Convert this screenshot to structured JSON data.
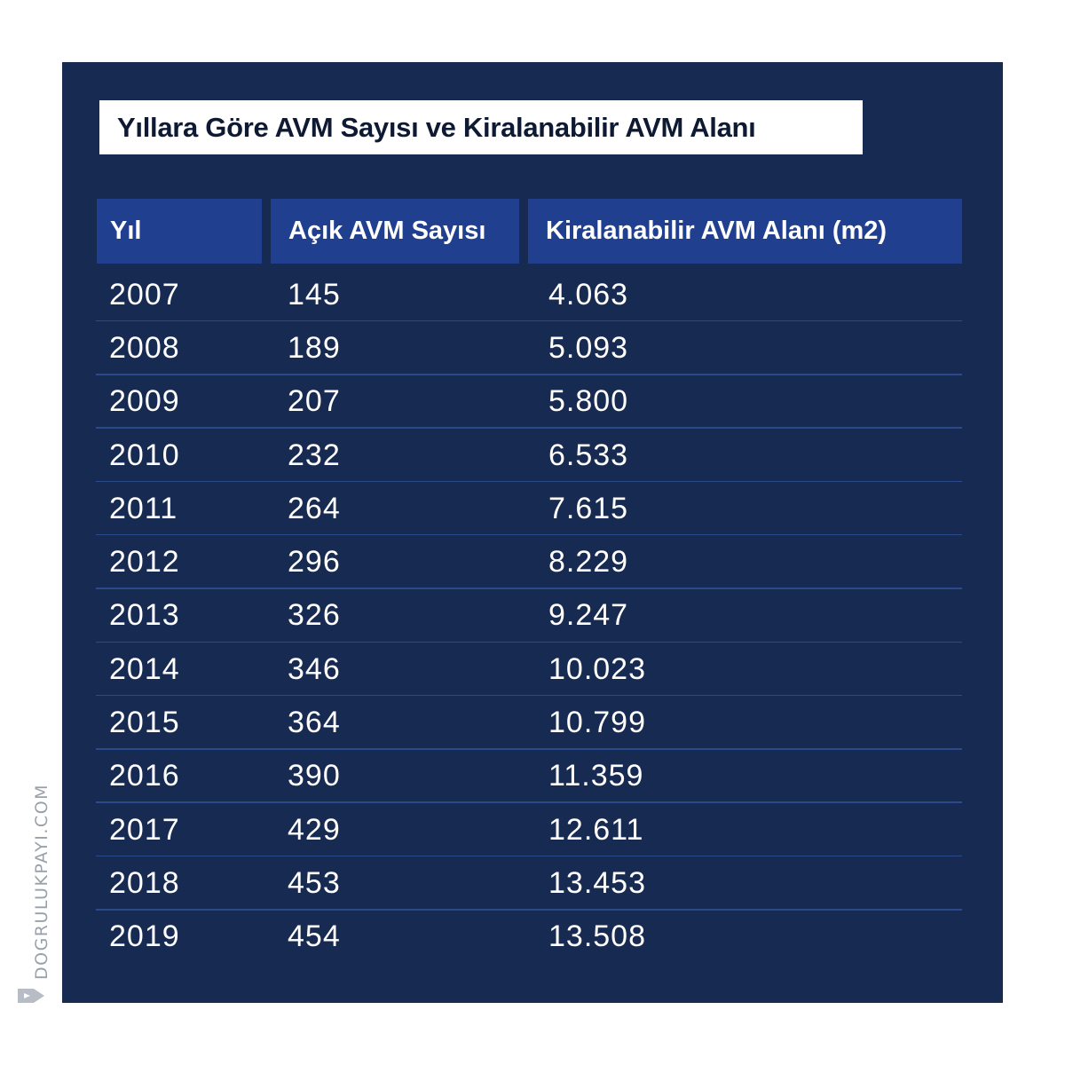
{
  "title": "Yıllara Göre AVM Sayısı ve Kiralanabilir AVM Alanı",
  "watermark": "DOGRULUKPAYI.COM",
  "colors": {
    "panel": "#172a52",
    "header": "#20408f",
    "title_box": "#ffffff",
    "separator": "#2b4a8c"
  },
  "chart_data": {
    "type": "table",
    "title": "Yıllara Göre AVM Sayısı ve Kiralanabilir AVM Alanı",
    "columns": [
      "Yıl",
      "Açık AVM Sayısı",
      "Kiralanabilir AVM Alanı (m2)"
    ],
    "rows": [
      [
        "2007",
        "145",
        "4.063"
      ],
      [
        "2008",
        "189",
        "5.093"
      ],
      [
        "2009",
        "207",
        "5.800"
      ],
      [
        "2010",
        "232",
        "6.533"
      ],
      [
        "2011",
        "264",
        "7.615"
      ],
      [
        "2012",
        "296",
        "8.229"
      ],
      [
        "2013",
        "326",
        "9.247"
      ],
      [
        "2014",
        "346",
        "10.023"
      ],
      [
        "2015",
        "364",
        "10.799"
      ],
      [
        "2016",
        "390",
        "11.359"
      ],
      [
        "2017",
        "429",
        "12.611"
      ],
      [
        "2018",
        "453",
        "13.453"
      ],
      [
        "2019",
        "454",
        "13.508"
      ]
    ]
  }
}
